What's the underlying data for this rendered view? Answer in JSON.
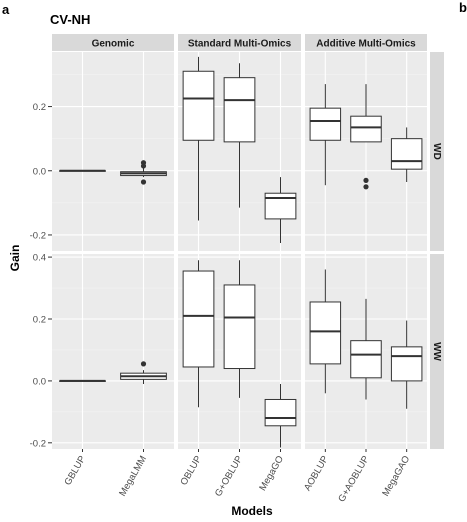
{
  "panel_letters": {
    "left": "a",
    "right": "b"
  },
  "chart_data": {
    "type": "boxplot",
    "title": "CV-NH",
    "xlabel": "Models",
    "ylabel": "Gain",
    "columns": [
      "Genomic",
      "Standard Multi-Omics",
      "Additive Multi-Omics"
    ],
    "rows": [
      {
        "label": "WD",
        "ylim": [
          -0.25,
          0.37
        ],
        "yticks": [
          -0.2,
          0.0,
          0.2
        ],
        "ytick_labels": [
          "-0.2",
          "0.0",
          "0.2"
        ],
        "groups": [
          [
            {
              "model": "GBLUP",
              "min": 0.0,
              "q1": 0.0,
              "median": 0.0,
              "q3": 0.0,
              "max": 0.0,
              "outliers": []
            },
            {
              "model": "MegaLMM",
              "min": -0.02,
              "q1": -0.015,
              "median": -0.008,
              "q3": -0.003,
              "max": 0.01,
              "outliers": [
                0.025,
                0.015,
                -0.035
              ]
            }
          ],
          [
            {
              "model": "OBLUP",
              "min": -0.155,
              "q1": 0.095,
              "median": 0.225,
              "q3": 0.31,
              "max": 0.355,
              "outliers": []
            },
            {
              "model": "G+OBLUP",
              "min": -0.115,
              "q1": 0.09,
              "median": 0.22,
              "q3": 0.29,
              "max": 0.335,
              "outliers": []
            },
            {
              "model": "MegaGO",
              "min": -0.225,
              "q1": -0.15,
              "median": -0.085,
              "q3": -0.07,
              "max": -0.02,
              "outliers": []
            }
          ],
          [
            {
              "model": "AOBLUP",
              "min": -0.045,
              "q1": 0.095,
              "median": 0.155,
              "q3": 0.195,
              "max": 0.27,
              "outliers": []
            },
            {
              "model": "G+AOBLUP",
              "min": 0.09,
              "q1": 0.09,
              "median": 0.135,
              "q3": 0.17,
              "max": 0.27,
              "outliers": [
                -0.03,
                -0.05
              ]
            },
            {
              "model": "MegaGAO",
              "min": -0.035,
              "q1": 0.005,
              "median": 0.03,
              "q3": 0.1,
              "max": 0.135,
              "outliers": []
            }
          ]
        ]
      },
      {
        "label": "WW",
        "ylim": [
          -0.22,
          0.41
        ],
        "yticks": [
          -0.2,
          0.0,
          0.2,
          0.4
        ],
        "ytick_labels": [
          "-0.2",
          "0.0",
          "0.2",
          "0.4"
        ],
        "groups": [
          [
            {
              "model": "GBLUP",
              "min": 0.0,
              "q1": 0.0,
              "median": 0.0,
              "q3": 0.0,
              "max": 0.0,
              "outliers": []
            },
            {
              "model": "MegaLMM",
              "min": -0.01,
              "q1": 0.005,
              "median": 0.015,
              "q3": 0.025,
              "max": 0.035,
              "outliers": [
                0.055
              ]
            }
          ],
          [
            {
              "model": "OBLUP",
              "min": -0.085,
              "q1": 0.045,
              "median": 0.21,
              "q3": 0.355,
              "max": 0.39,
              "outliers": []
            },
            {
              "model": "G+OBLUP",
              "min": -0.055,
              "q1": 0.04,
              "median": 0.205,
              "q3": 0.31,
              "max": 0.39,
              "outliers": []
            },
            {
              "model": "MegaGO",
              "min": -0.215,
              "q1": -0.145,
              "median": -0.12,
              "q3": -0.06,
              "max": -0.01,
              "outliers": []
            }
          ],
          [
            {
              "model": "AOBLUP",
              "min": -0.04,
              "q1": 0.055,
              "median": 0.16,
              "q3": 0.255,
              "max": 0.36,
              "outliers": []
            },
            {
              "model": "G+AOBLUP",
              "min": -0.06,
              "q1": 0.01,
              "median": 0.085,
              "q3": 0.13,
              "max": 0.265,
              "outliers": []
            },
            {
              "model": "MegaGAO",
              "min": -0.09,
              "q1": 0.0,
              "median": 0.08,
              "q3": 0.11,
              "max": 0.195,
              "outliers": []
            }
          ]
        ]
      }
    ],
    "grid": true
  }
}
